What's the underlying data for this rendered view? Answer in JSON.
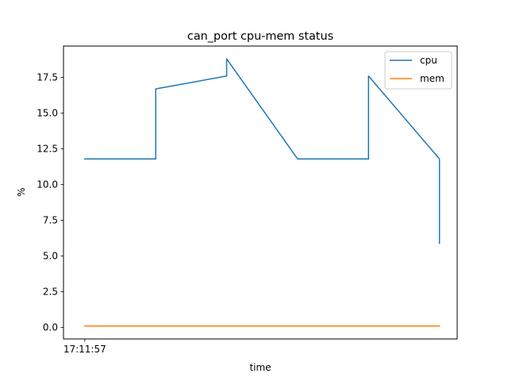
{
  "chart_data": {
    "type": "line",
    "title": "can_port cpu-mem status",
    "xlabel": "time",
    "ylabel": "%",
    "x_ticks": [
      {
        "x": 0,
        "label": "17:11:57"
      }
    ],
    "xlim": [
      -0.3,
      5.25
    ],
    "ylim": [
      -0.8,
      19.7
    ],
    "y_ticks": [
      {
        "value": 0.0,
        "label": "0.0"
      },
      {
        "value": 2.5,
        "label": "2.5"
      },
      {
        "value": 5.0,
        "label": "5.0"
      },
      {
        "value": 7.5,
        "label": "7.5"
      },
      {
        "value": 10.0,
        "label": "10.0"
      },
      {
        "value": 12.5,
        "label": "12.5"
      },
      {
        "value": 15.0,
        "label": "15.0"
      },
      {
        "value": 17.5,
        "label": "17.5"
      }
    ],
    "grid": false,
    "legend_position": "top-right",
    "series": [
      {
        "name": "cpu",
        "color": "#1f77b4",
        "points": [
          [
            0,
            11.8
          ],
          [
            1,
            11.8
          ],
          [
            1,
            16.7
          ],
          [
            2,
            17.6
          ],
          [
            2,
            18.8
          ],
          [
            3,
            11.8
          ],
          [
            4,
            11.8
          ],
          [
            4,
            17.6
          ],
          [
            5,
            11.8
          ],
          [
            5,
            5.9
          ]
        ]
      },
      {
        "name": "mem",
        "color": "#ff7f0e",
        "points": [
          [
            0,
            0.1
          ],
          [
            1,
            0.1
          ],
          [
            2,
            0.1
          ],
          [
            3,
            0.1
          ],
          [
            4,
            0.1
          ],
          [
            5,
            0.1
          ]
        ]
      }
    ]
  }
}
